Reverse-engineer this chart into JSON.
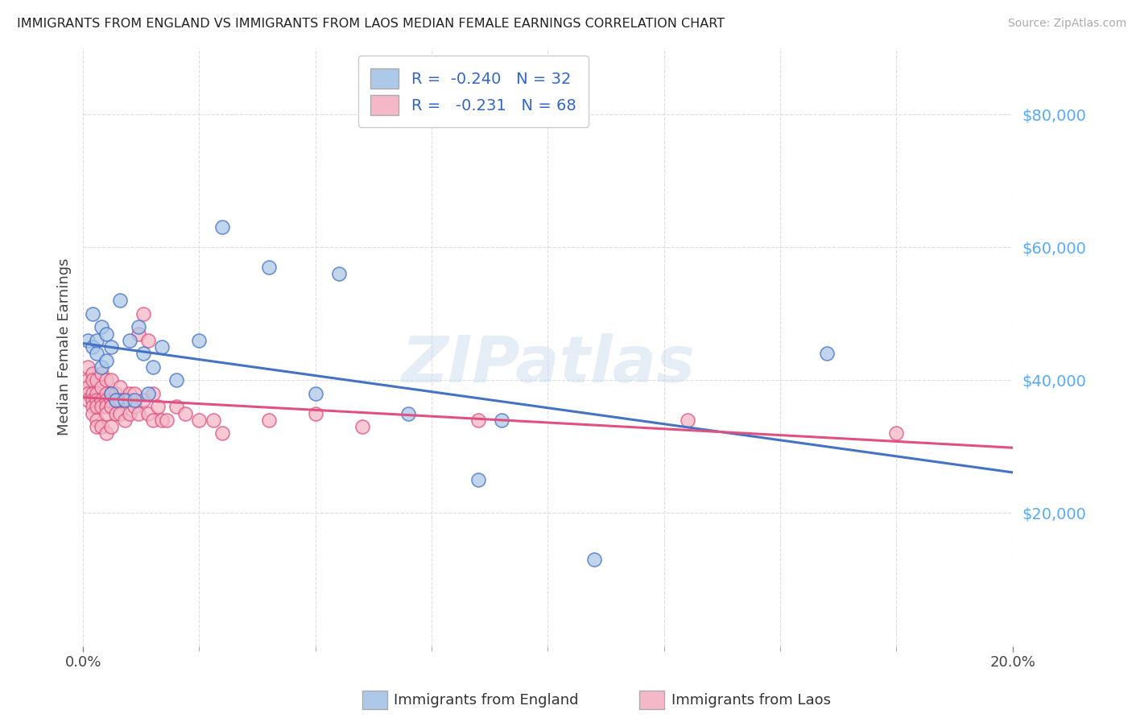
{
  "title": "IMMIGRANTS FROM ENGLAND VS IMMIGRANTS FROM LAOS MEDIAN FEMALE EARNINGS CORRELATION CHART",
  "source": "Source: ZipAtlas.com",
  "ylabel": "Median Female Earnings",
  "ytick_labels": [
    "$20,000",
    "$40,000",
    "$60,000",
    "$80,000"
  ],
  "ytick_values": [
    20000,
    40000,
    60000,
    80000
  ],
  "ylim": [
    0,
    90000
  ],
  "xlim": [
    0.0,
    0.2
  ],
  "england_color": "#adc8e8",
  "england_line_color": "#4472c4",
  "laos_color": "#f4b8c8",
  "laos_line_color": "#e05080",
  "england_R": -0.24,
  "england_N": 32,
  "laos_R": -0.231,
  "laos_N": 68,
  "england_x": [
    0.001,
    0.002,
    0.002,
    0.003,
    0.003,
    0.004,
    0.004,
    0.005,
    0.005,
    0.006,
    0.006,
    0.007,
    0.008,
    0.009,
    0.01,
    0.011,
    0.012,
    0.013,
    0.014,
    0.015,
    0.017,
    0.02,
    0.025,
    0.03,
    0.04,
    0.05,
    0.055,
    0.07,
    0.085,
    0.09,
    0.11,
    0.16
  ],
  "england_y": [
    46000,
    50000,
    45000,
    46000,
    44000,
    48000,
    42000,
    47000,
    43000,
    45000,
    38000,
    37000,
    52000,
    37000,
    46000,
    37000,
    48000,
    44000,
    38000,
    42000,
    45000,
    40000,
    46000,
    63000,
    57000,
    38000,
    56000,
    35000,
    25000,
    34000,
    13000,
    44000
  ],
  "laos_x": [
    0.001,
    0.001,
    0.001,
    0.001,
    0.001,
    0.002,
    0.002,
    0.002,
    0.002,
    0.002,
    0.002,
    0.003,
    0.003,
    0.003,
    0.003,
    0.003,
    0.003,
    0.004,
    0.004,
    0.004,
    0.004,
    0.004,
    0.005,
    0.005,
    0.005,
    0.005,
    0.005,
    0.005,
    0.006,
    0.006,
    0.006,
    0.006,
    0.006,
    0.007,
    0.007,
    0.007,
    0.008,
    0.008,
    0.008,
    0.009,
    0.009,
    0.01,
    0.01,
    0.01,
    0.011,
    0.011,
    0.012,
    0.012,
    0.013,
    0.013,
    0.014,
    0.014,
    0.015,
    0.015,
    0.016,
    0.017,
    0.018,
    0.02,
    0.022,
    0.025,
    0.028,
    0.03,
    0.04,
    0.05,
    0.06,
    0.085,
    0.13,
    0.175
  ],
  "laos_y": [
    42000,
    40000,
    39000,
    38000,
    37000,
    41000,
    40000,
    38000,
    37000,
    36000,
    35000,
    40000,
    38000,
    37000,
    36000,
    34000,
    33000,
    41000,
    39000,
    37000,
    36000,
    33000,
    40000,
    38000,
    37000,
    36000,
    35000,
    32000,
    40000,
    38000,
    37000,
    36000,
    33000,
    38000,
    37000,
    35000,
    39000,
    37000,
    35000,
    37000,
    34000,
    38000,
    37000,
    35000,
    38000,
    36000,
    47000,
    35000,
    50000,
    37000,
    46000,
    35000,
    38000,
    34000,
    36000,
    34000,
    34000,
    36000,
    35000,
    34000,
    34000,
    32000,
    34000,
    35000,
    33000,
    34000,
    34000,
    32000
  ],
  "background_color": "#ffffff",
  "grid_color": "#dddddd",
  "watermark": "ZIPatlas",
  "legend_label_england": "Immigrants from England",
  "legend_label_laos": "Immigrants from Laos"
}
